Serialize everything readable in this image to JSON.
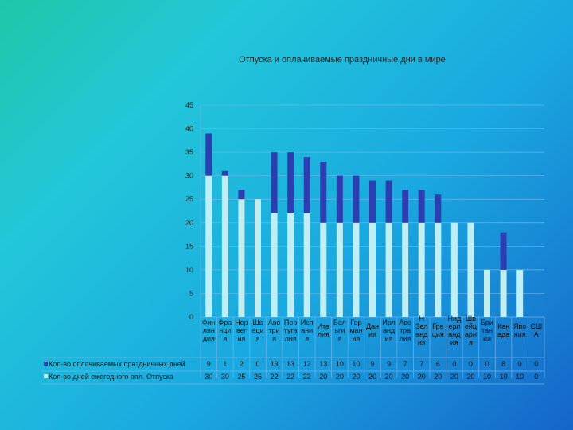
{
  "chart_data": {
    "type": "bar",
    "stacked": true,
    "title": "Отпуска и оплачиваемые праздничные дни в мире",
    "ylim": [
      0,
      45
    ],
    "yticks": [
      0,
      5,
      10,
      15,
      20,
      25,
      30,
      35,
      40,
      45
    ],
    "gridlines": true,
    "categories": [
      "Финляндия",
      "Франция",
      "Норвегия",
      "Швеция",
      "Австрия",
      "Португалия",
      "Испания",
      "Италия",
      "Бельгия",
      "Германия",
      "Дания",
      "Ирландия",
      "Австралия",
      "Новая Зеландия",
      "Греция",
      "Нидерланды",
      "Швейцария",
      "Британия",
      "Канада",
      "Япония",
      "США"
    ],
    "category_lines": [
      [
        "Фин",
        "лян",
        "дия"
      ],
      [
        "Фра",
        "нци",
        "я"
      ],
      [
        "Нор",
        "вег",
        "ия"
      ],
      [
        "Шв",
        "еци",
        "я"
      ],
      [
        "Аво",
        "три",
        "я"
      ],
      [
        "Пор",
        "туга",
        "лия"
      ],
      [
        "Исп",
        "ани",
        "я"
      ],
      [
        "Ита",
        "лия"
      ],
      [
        "Бел",
        "ьги",
        "я"
      ],
      [
        "Гер",
        "ман",
        "ия"
      ],
      [
        "Дан",
        "ия"
      ],
      [
        "Ирл",
        "анд",
        "ия"
      ],
      [
        "Аво",
        "тра",
        "лия"
      ],
      [
        "Н",
        "Зел",
        "анд",
        "ия"
      ],
      [
        "Гре",
        "ция"
      ],
      [
        "Нид",
        "ерл",
        "анд",
        "ия"
      ],
      [
        "Шв",
        "ейц",
        "ари",
        "я"
      ],
      [
        "Бри",
        "тан",
        "ия"
      ],
      [
        "Кан",
        "ада"
      ],
      [
        "Япо",
        "ния"
      ],
      [
        "СШ",
        "А"
      ]
    ],
    "series": [
      {
        "name": "Кол-во оплачиваемых праздничных дней",
        "color": "#2d3fb0",
        "values": [
          9,
          1,
          2,
          0,
          13,
          13,
          12,
          13,
          10,
          10,
          9,
          9,
          7,
          7,
          6,
          0,
          0,
          0,
          8,
          0,
          0
        ]
      },
      {
        "name": "Кол-во дней ежегодного опл. Отпуска",
        "color": "#bfeef5",
        "values": [
          30,
          30,
          25,
          25,
          22,
          22,
          22,
          20,
          20,
          20,
          20,
          20,
          20,
          20,
          20,
          20,
          20,
          10,
          10,
          10,
          0
        ]
      }
    ],
    "table_values": [
      [
        "9",
        "1",
        "2",
        "0",
        "13",
        "13",
        "12",
        "13",
        "10",
        "10",
        "9",
        "9",
        "7",
        "7",
        "6",
        "0",
        "0",
        "0",
        "8",
        "0",
        "0"
      ],
      [
        "30",
        "30",
        "25",
        "25",
        "22",
        "22",
        "22",
        "20",
        "20",
        "20",
        "20",
        "20",
        "20",
        "20",
        "20",
        "20",
        "20",
        "10",
        "10",
        "10",
        "0"
      ]
    ],
    "colors": {
      "paid": "#2d3fb0",
      "vacation": "#bfeef5",
      "grid": "#6fb3ea"
    }
  }
}
